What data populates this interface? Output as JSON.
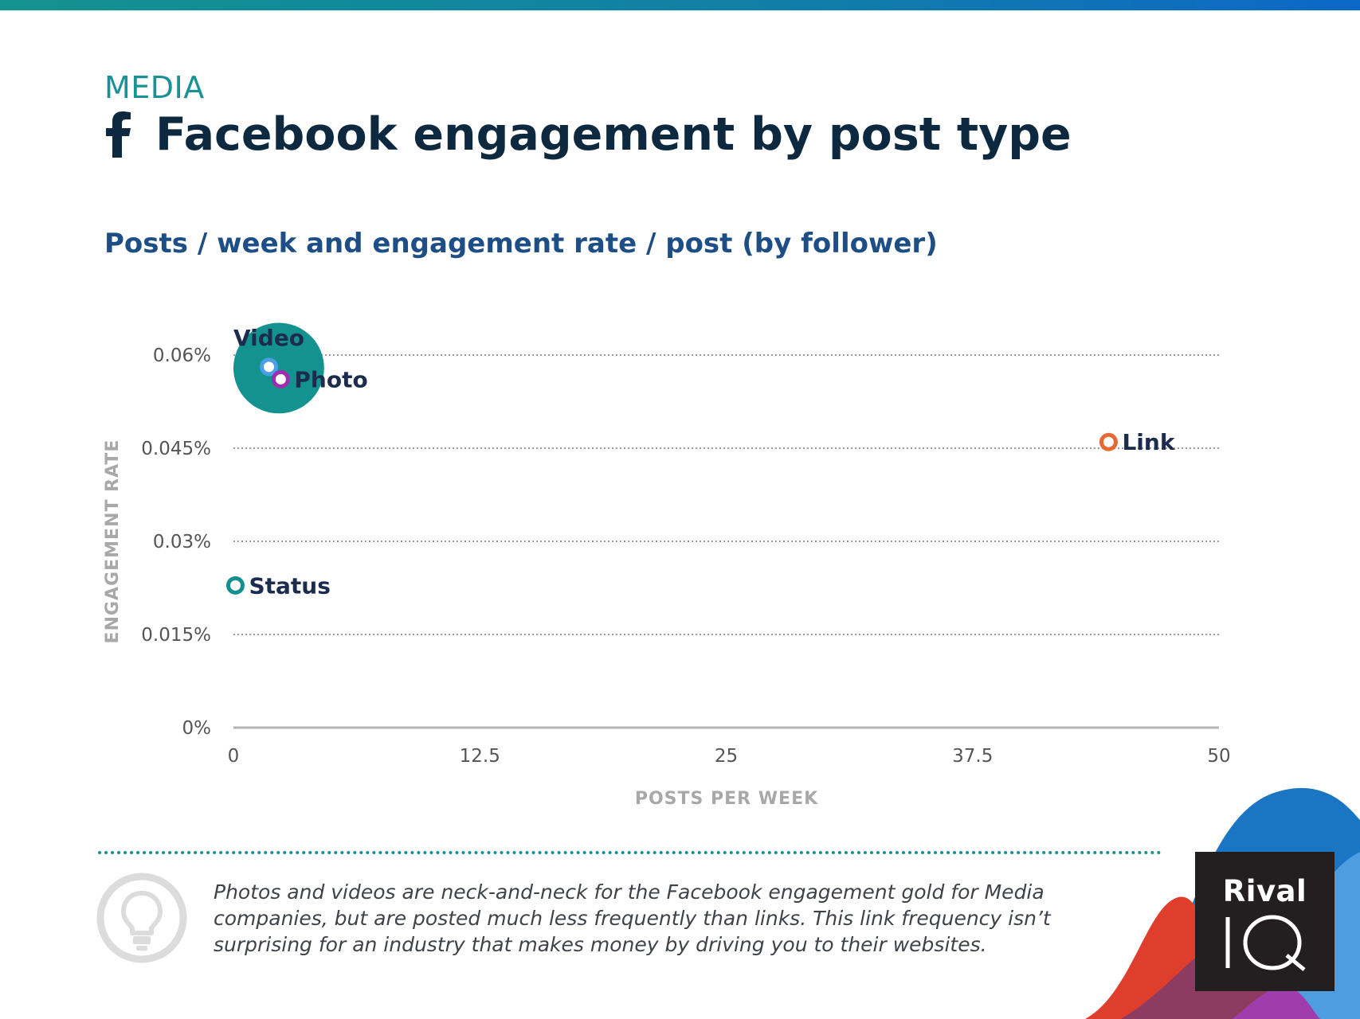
{
  "industry": "MEDIA",
  "title": "Facebook engagement by post type",
  "subtitle": "Posts / week and engagement rate / post (by follower)",
  "insight": "Photos and videos are neck-and-neck for the Facebook engagement gold for Media companies, but are posted much less frequently than links. This link frequency isn’t surprising for an industry that makes money by driving you to their websites.",
  "brand": {
    "name_top": "Rival",
    "name_bottom": "IQ"
  },
  "colors": {
    "header_bar": "#107ea9",
    "industry": "#1a9194",
    "title": "#0d2940",
    "subtitle": "#1d4e85",
    "label_text": "#1b2c4e",
    "axis_text": "#555555",
    "axis_title": "#a8a8a8",
    "highlight_circle": "#14928f"
  },
  "icons": [
    "facebook-icon",
    "lightbulb-icon"
  ],
  "chart_data": {
    "type": "scatter",
    "xlabel": "POSTS PER WEEK",
    "ylabel": "ENGAGEMENT RATE",
    "xlim": [
      0,
      50
    ],
    "ylim": [
      0,
      0.06
    ],
    "x_ticks": [
      {
        "value": 0,
        "label": "0"
      },
      {
        "value": 12.5,
        "label": "12.5"
      },
      {
        "value": 25,
        "label": "25"
      },
      {
        "value": 37.5,
        "label": "37.5"
      },
      {
        "value": 50,
        "label": "50"
      }
    ],
    "y_ticks": [
      {
        "value": 0,
        "label": "0%"
      },
      {
        "value": 0.015,
        "label": "0.015%"
      },
      {
        "value": 0.03,
        "label": "0.03%"
      },
      {
        "value": 0.045,
        "label": "0.045%"
      },
      {
        "value": 0.06,
        "label": "0.06%"
      }
    ],
    "grid": "horizontal dotted",
    "points": [
      {
        "name": "Video",
        "x": 1.8,
        "y": 0.0581,
        "color": "#4a9fe8",
        "label_side": "top"
      },
      {
        "name": "Photo",
        "x": 2.4,
        "y": 0.0561,
        "color": "#9b2fae",
        "label_side": "right"
      },
      {
        "name": "Link",
        "x": 44.4,
        "y": 0.046,
        "color": "#e56a36",
        "label_side": "right"
      },
      {
        "name": "Status",
        "x": 0.1,
        "y": 0.0229,
        "color": "#148f8f",
        "label_side": "right"
      }
    ],
    "highlight": {
      "x": 2.3,
      "y": 0.0579,
      "radius": 2.3,
      "color": "#14928f"
    }
  }
}
